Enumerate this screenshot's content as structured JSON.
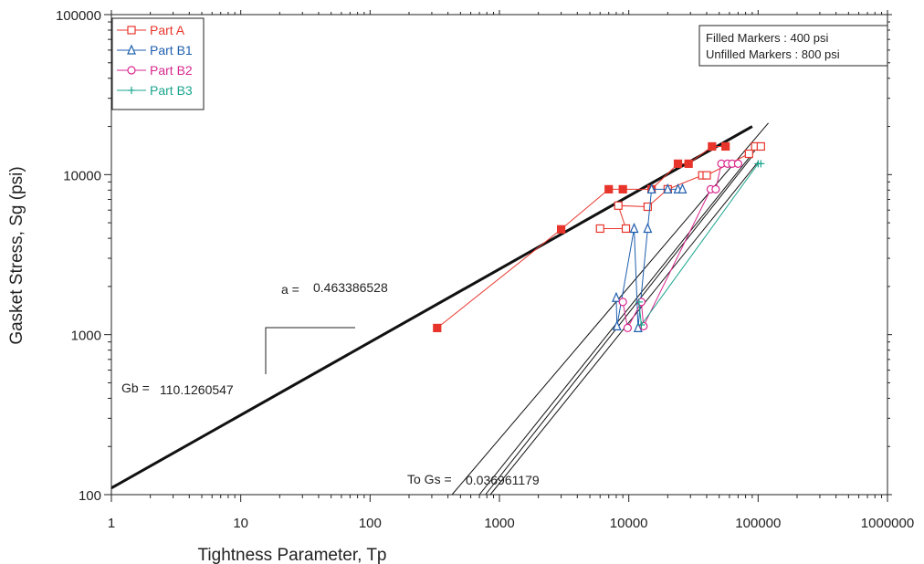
{
  "chart_data": {
    "type": "scatter",
    "xlabel": "Tightness Parameter, Tp",
    "ylabel": "Gasket Stress, Sg (psi)",
    "xscale": "log",
    "yscale": "log",
    "xlim": [
      1,
      1000000
    ],
    "ylim": [
      100,
      100000
    ],
    "grid": false,
    "x_tick_labels": [
      "1",
      "10",
      "100",
      "1000",
      "10000",
      "100000",
      "1000000"
    ],
    "y_tick_labels": [
      "100",
      "1000",
      "10000",
      "100000"
    ],
    "legend_position": "top-left",
    "marker_note_lines": [
      "Filled Markers : 400 psi",
      "Unfilled Markers : 800 psi"
    ],
    "annotations": {
      "a_label": "a =",
      "a_value": "0.463386528",
      "gb_label": "Gb =",
      "gb_value": "110.1260547",
      "togs_label": "To Gs =",
      "togs_value": "0.036961179"
    },
    "series": [
      {
        "name": "Part A",
        "color": "#e8352b",
        "marker": "square",
        "filled_points": [
          [
            330,
            1100
          ],
          [
            3000,
            4550
          ],
          [
            7000,
            8100
          ],
          [
            9000,
            8100
          ],
          [
            15000,
            8100
          ],
          [
            24000,
            11700
          ],
          [
            29000,
            11700
          ],
          [
            44000,
            15000
          ],
          [
            56000,
            15000
          ]
        ],
        "unfilled_points": [
          [
            6000,
            4600
          ],
          [
            9500,
            4600
          ],
          [
            8300,
            6400
          ],
          [
            14000,
            6300
          ],
          [
            20000,
            8100
          ],
          [
            37000,
            9900
          ],
          [
            40000,
            9900
          ],
          [
            85000,
            13500
          ],
          [
            95000,
            15000
          ],
          [
            105000,
            15000
          ]
        ]
      },
      {
        "name": "Part B1",
        "color": "#1f5fae",
        "marker": "triangle",
        "points": [
          [
            8000,
            1700
          ],
          [
            8100,
            1130
          ],
          [
            11000,
            4600
          ],
          [
            11800,
            1100
          ],
          [
            14000,
            4600
          ],
          [
            15000,
            8100
          ],
          [
            20000,
            8100
          ],
          [
            24000,
            8100
          ],
          [
            26000,
            8100
          ]
        ]
      },
      {
        "name": "Part B2",
        "color": "#d9288f",
        "marker": "circle",
        "points": [
          [
            9000,
            1600
          ],
          [
            9800,
            1100
          ],
          [
            12500,
            1600
          ],
          [
            13000,
            1130
          ],
          [
            43000,
            8100
          ],
          [
            47000,
            8100
          ],
          [
            52000,
            11700
          ],
          [
            58000,
            11700
          ],
          [
            63000,
            11700
          ],
          [
            70000,
            11700
          ]
        ]
      },
      {
        "name": "Part B3",
        "color": "#19a58e",
        "marker": "plus",
        "points": [
          [
            12000,
            1600
          ],
          [
            12500,
            1150
          ],
          [
            100000,
            11700
          ],
          [
            105000,
            11700
          ]
        ]
      }
    ],
    "reference_lines": [
      {
        "kind": "thick",
        "points": [
          [
            1,
            110
          ],
          [
            90000,
            20000
          ]
        ]
      },
      {
        "kind": "thin",
        "points": [
          [
            430,
            100
          ],
          [
            120000,
            21000
          ]
        ]
      },
      {
        "kind": "thin",
        "points": [
          [
            700,
            100
          ],
          [
            100000,
            15000
          ]
        ]
      },
      {
        "kind": "thin",
        "points": [
          [
            780,
            100
          ],
          [
            90000,
            13000
          ]
        ]
      },
      {
        "kind": "thin",
        "points": [
          [
            850,
            100
          ],
          [
            100000,
            12000
          ]
        ]
      }
    ]
  }
}
